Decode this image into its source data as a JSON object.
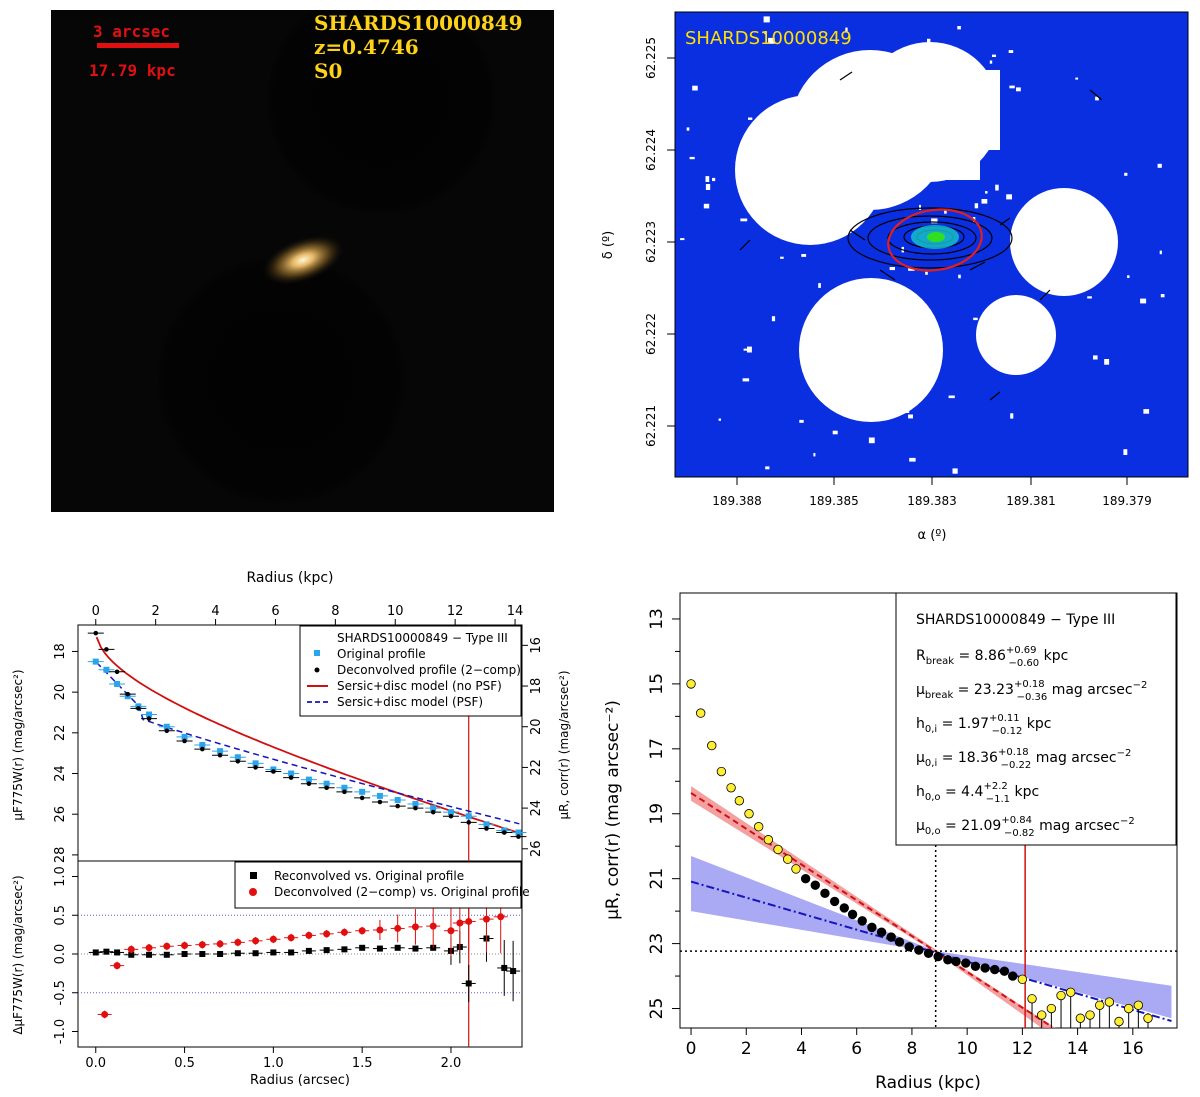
{
  "panel1": {
    "scale_arcsec": "3 arcsec",
    "scale_kpc": "17.79 kpc",
    "object_id": "SHARDS10000849",
    "redshift": "z=0.4746",
    "morph_type": "S0"
  },
  "panel2": {
    "label": "SHARDS10000849",
    "xlabel": "α (º)",
    "ylabel": "δ (º)",
    "xticks": [
      "189.388",
      "189.385",
      "189.383",
      "189.381",
      "189.379"
    ],
    "yticks": [
      "62.225",
      "62.224",
      "62.223",
      "62.222",
      "62.221"
    ]
  },
  "panel3": {
    "top_xlabel": "Radius (kpc)",
    "bottom_xlabel": "Radius (arcsec)",
    "ylabel_left": "μF775W(r) (mag/arcsec²)",
    "ylabel_right": "μR, corr(r) (mag/arcsec²)",
    "ylabel_resid": "ΔμF775W(r) (mag/arcsec²)",
    "top_ticks": [
      "0",
      "2",
      "4",
      "6",
      "8",
      "10",
      "12",
      "14"
    ],
    "bottom_ticks": [
      "0.0",
      "0.5",
      "1.0",
      "1.5",
      "2.0"
    ],
    "left_ticks": [
      "18",
      "20",
      "22",
      "24",
      "26",
      "28"
    ],
    "right_ticks": [
      "16",
      "18",
      "20",
      "22",
      "24",
      "26"
    ],
    "resid_ticks": [
      "1.0",
      "0.5",
      "0.0",
      "-0.5",
      "-1.0"
    ],
    "legend_top": {
      "title": "SHARDS10000849  −  Type III",
      "entries": [
        "Original profile",
        "Deconvolved profile (2−comp)",
        "Sersic+disc model (no PSF)",
        "Sersic+disc model (PSF)"
      ]
    },
    "legend_bottom": {
      "entries": [
        "Reconvolved vs. Original profile",
        "Deconvolved (2−comp) vs. Original profile"
      ]
    }
  },
  "panel4": {
    "xlabel": "Radius (kpc)",
    "ylabel": "μR, corr(r) (mag arcsec⁻²)",
    "xticks": [
      "0",
      "2",
      "4",
      "6",
      "8",
      "10",
      "12",
      "14",
      "16"
    ],
    "yticks": [
      "13",
      "15",
      "17",
      "19",
      "21",
      "23",
      "25"
    ],
    "legend": {
      "title": "SHARDS10000849  −  Type III",
      "rbreak": "R",
      "rbreak_sub": "break",
      "rbreak_val": " = 8.86",
      "rbreak_sup": "+0.69",
      "rbreak_inf": "−0.60",
      "rbreak_unit": " kpc",
      "mubreak": "μ",
      "mubreak_sub": "break",
      "mubreak_val": " = 23.23",
      "mubreak_sup": "+0.18",
      "mubreak_inf": "−0.36",
      "mubreak_unit": " mag arcsec",
      "mubreak_exp": "−2",
      "h0i": "h",
      "h0i_sub": "0,i",
      "h0i_val": " = 1.97",
      "h0i_sup": "+0.11",
      "h0i_inf": "−0.12",
      "h0i_unit": " kpc",
      "mu0i": "μ",
      "mu0i_sub": "0,i",
      "mu0i_val": " = 18.36",
      "mu0i_sup": "+0.18",
      "mu0i_inf": "−0.22",
      "mu0i_unit": " mag arcsec",
      "mu0i_exp": "−2",
      "h0o": "h",
      "h0o_sub": "0,o",
      "h0o_val": " = 4.4",
      "h0o_sup": "+2.2",
      "h0o_inf": "−1.1",
      "h0o_unit": " kpc",
      "mu0o": "μ",
      "mu0o_sub": "0,o",
      "mu0o_val": " = 21.09",
      "mu0o_sup": "+0.84",
      "mu0o_inf": "−0.82",
      "mu0o_unit": " mag arcsec",
      "mu0o_exp": "−2"
    }
  },
  "chart_data": [
    {
      "type": "scatter",
      "title": "SHARDS10000849 − Type III",
      "xlabel": "Radius (arcsec)",
      "ylabel": "μF775W(r) (mag/arcsec²)",
      "xlim": [
        -0.1,
        2.4
      ],
      "ylim": [
        28.3,
        16.7
      ],
      "series": [
        {
          "name": "Original profile",
          "x": [
            0.0,
            0.06,
            0.12,
            0.18,
            0.24,
            0.3,
            0.4,
            0.5,
            0.6,
            0.7,
            0.8,
            0.9,
            1.0,
            1.1,
            1.2,
            1.3,
            1.4,
            1.5,
            1.6,
            1.7,
            1.8,
            1.9,
            2.0,
            2.1,
            2.2,
            2.3,
            2.38
          ],
          "y": [
            18.5,
            18.9,
            19.6,
            20.2,
            20.7,
            21.1,
            21.7,
            22.2,
            22.6,
            22.9,
            23.2,
            23.5,
            23.8,
            24.0,
            24.3,
            24.5,
            24.7,
            24.9,
            25.1,
            25.3,
            25.5,
            25.7,
            25.9,
            26.1,
            26.5,
            26.8,
            26.9
          ]
        },
        {
          "name": "Deconvolved profile (2-comp)",
          "x": [
            0.0,
            0.06,
            0.12,
            0.18,
            0.24,
            0.3,
            0.4,
            0.5,
            0.6,
            0.7,
            0.8,
            0.9,
            1.0,
            1.1,
            1.2,
            1.3,
            1.4,
            1.5,
            1.6,
            1.7,
            1.8,
            1.9,
            2.0,
            2.1,
            2.2,
            2.3,
            2.38
          ],
          "y": [
            17.1,
            17.9,
            19.0,
            20.1,
            20.8,
            21.3,
            21.9,
            22.4,
            22.8,
            23.1,
            23.4,
            23.7,
            23.9,
            24.2,
            24.5,
            24.7,
            24.9,
            25.2,
            25.4,
            25.6,
            25.7,
            25.9,
            26.1,
            26.4,
            26.7,
            26.9,
            27.1
          ]
        }
      ],
      "models": [
        "Sersic+disc model (no PSF)",
        "Sersic+disc model (PSF)"
      ],
      "break_arcsec": 2.1
    },
    {
      "type": "scatter",
      "xlabel": "Radius (arcsec)",
      "ylabel": "ΔμF775W(r) (mag/arcsec²)",
      "ylim": [
        -1.2,
        1.2
      ],
      "series": [
        {
          "name": "Reconvolved vs. Original profile",
          "x": [
            0.0,
            0.06,
            0.12,
            0.2,
            0.3,
            0.4,
            0.5,
            0.6,
            0.7,
            0.8,
            0.9,
            1.0,
            1.1,
            1.2,
            1.3,
            1.4,
            1.5,
            1.6,
            1.7,
            1.8,
            1.9,
            2.0,
            2.05,
            2.1,
            2.2,
            2.3,
            2.35
          ],
          "y": [
            0.02,
            0.03,
            0.02,
            -0.01,
            -0.01,
            -0.01,
            0.0,
            0.0,
            0.0,
            0.01,
            0.01,
            0.02,
            0.02,
            0.04,
            0.05,
            0.06,
            0.08,
            0.07,
            0.08,
            0.07,
            0.08,
            0.04,
            0.09,
            -0.38,
            0.2,
            -0.18,
            -0.22
          ]
        },
        {
          "name": "Deconvolved (2-comp) vs. Original profile",
          "x": [
            0.05,
            0.12,
            0.2,
            0.3,
            0.4,
            0.5,
            0.6,
            0.7,
            0.8,
            0.9,
            1.0,
            1.1,
            1.2,
            1.3,
            1.4,
            1.5,
            1.6,
            1.7,
            1.8,
            1.9,
            2.0,
            2.05,
            2.1,
            2.2,
            2.28
          ],
          "y": [
            -0.78,
            -0.15,
            0.06,
            0.08,
            0.1,
            0.11,
            0.12,
            0.13,
            0.15,
            0.17,
            0.19,
            0.21,
            0.24,
            0.26,
            0.28,
            0.3,
            0.31,
            0.33,
            0.35,
            0.36,
            0.3,
            0.4,
            0.42,
            0.45,
            0.48
          ]
        }
      ]
    },
    {
      "type": "scatter",
      "title": "SHARDS10000849 − Type III",
      "xlabel": "Radius (kpc)",
      "ylabel": "μR,corr(r) (mag arcsec⁻²)",
      "xlim": [
        -0.4,
        17.6
      ],
      "ylim": [
        25.6,
        12.2
      ],
      "points": [
        [
          0.0,
          15.0
        ],
        [
          0.35,
          15.9
        ],
        [
          0.75,
          16.9
        ],
        [
          1.1,
          17.7
        ],
        [
          1.45,
          18.2
        ],
        [
          1.75,
          18.6
        ],
        [
          2.1,
          19.0
        ],
        [
          2.45,
          19.4
        ],
        [
          2.8,
          19.8
        ],
        [
          3.15,
          20.1
        ],
        [
          3.5,
          20.4
        ],
        [
          3.8,
          20.7
        ],
        [
          4.15,
          21.0
        ],
        [
          4.5,
          21.2
        ],
        [
          4.85,
          21.45
        ],
        [
          5.2,
          21.7
        ],
        [
          5.55,
          21.9
        ],
        [
          5.85,
          22.1
        ],
        [
          6.2,
          22.3
        ],
        [
          6.55,
          22.5
        ],
        [
          6.9,
          22.65
        ],
        [
          7.25,
          22.8
        ],
        [
          7.55,
          22.95
        ],
        [
          7.9,
          23.1
        ],
        [
          8.25,
          23.2
        ],
        [
          8.6,
          23.3
        ],
        [
          8.95,
          23.4
        ],
        [
          9.3,
          23.5
        ],
        [
          9.6,
          23.55
        ],
        [
          9.95,
          23.6
        ],
        [
          10.3,
          23.7
        ],
        [
          10.65,
          23.75
        ],
        [
          11.0,
          23.8
        ],
        [
          11.35,
          23.85
        ],
        [
          11.65,
          24.0
        ],
        [
          12.0,
          24.1
        ],
        [
          12.35,
          24.7
        ],
        [
          12.7,
          25.2
        ],
        [
          13.05,
          25.0
        ],
        [
          13.4,
          24.6
        ],
        [
          13.75,
          24.5
        ],
        [
          14.1,
          25.3
        ],
        [
          14.45,
          25.2
        ],
        [
          14.8,
          24.9
        ],
        [
          15.15,
          24.8
        ],
        [
          15.5,
          25.4
        ],
        [
          15.85,
          25.0
        ],
        [
          16.2,
          24.9
        ],
        [
          16.55,
          25.3
        ]
      ],
      "inner_fit": {
        "mu0": 18.36,
        "h": 1.97
      },
      "outer_fit": {
        "mu0": 21.09,
        "h": 4.4
      },
      "r_break": 8.86,
      "mu_break": 23.23,
      "red_line_kpc": 12.1
    }
  ]
}
